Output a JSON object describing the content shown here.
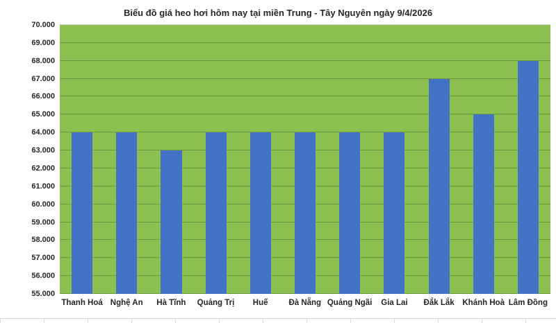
{
  "chart_data": {
    "type": "bar",
    "title": "Biểu đồ giá heo hơi hôm nay tại miền Trung - Tây Nguyên ngày 9/4/2026",
    "categories": [
      "Thanh Hoá",
      "Nghệ An",
      "Hà Tĩnh",
      "Quảng Trị",
      "Huế",
      "Đà Nẵng",
      "Quảng Ngãi",
      "Gia Lai",
      "Đắk Lắk",
      "Khánh Hoà",
      "Lâm Đồng"
    ],
    "values": [
      64000,
      64000,
      63000,
      64000,
      64000,
      64000,
      64000,
      64000,
      67000,
      65000,
      68000
    ],
    "xlabel": "",
    "ylabel": "",
    "ylim": [
      55000,
      70000
    ],
    "ytick_step": 1000,
    "ytick_labels": [
      "55.000",
      "56.000",
      "57.000",
      "58.000",
      "59.000",
      "60.000",
      "61.000",
      "62.000",
      "63.000",
      "64.000",
      "65.000",
      "66.000",
      "67.000",
      "68.000",
      "69.000",
      "70.000"
    ],
    "grid": true,
    "legend": "none",
    "colors": {
      "bar": "#4472c4",
      "plot_bg": "#8cc152",
      "gridline": "rgba(0,0,0,0.20)",
      "text": "#262626"
    }
  }
}
